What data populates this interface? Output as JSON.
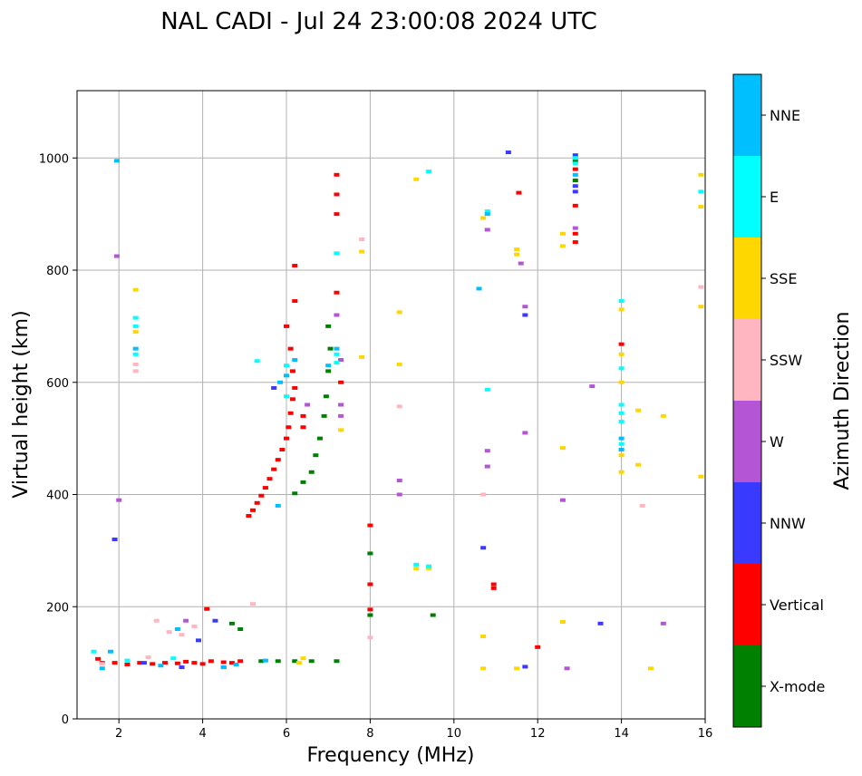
{
  "chart_data": {
    "type": "scatter",
    "title": "NAL CADI - Jul 24 23:00:08 2024 UTC",
    "xlabel": "Frequency (MHz)",
    "ylabel": "Virtual height (km)",
    "xlim": [
      1,
      16
    ],
    "ylim": [
      0,
      1120
    ],
    "xticks": [
      2,
      4,
      6,
      8,
      10,
      12,
      14,
      16
    ],
    "yticks": [
      0,
      200,
      400,
      600,
      800,
      1000
    ],
    "grid": true,
    "colorbar": {
      "label": "Azimuth Direction",
      "categories": [
        {
          "name": "X-mode",
          "color": "#008000"
        },
        {
          "name": "Vertical",
          "color": "#ff0000"
        },
        {
          "name": "NNW",
          "color": "#3a3aff"
        },
        {
          "name": "W",
          "color": "#b455d6"
        },
        {
          "name": "SSW",
          "color": "#ffb6c1"
        },
        {
          "name": "SSE",
          "color": "#ffd700"
        },
        {
          "name": "E",
          "color": "#00ffff"
        },
        {
          "name": "NNE",
          "color": "#00bfff"
        }
      ]
    },
    "series": [
      {
        "name": "Vertical",
        "points": [
          [
            1.9,
            100
          ],
          [
            2.2,
            97
          ],
          [
            2.5,
            100
          ],
          [
            2.8,
            98
          ],
          [
            3.1,
            100
          ],
          [
            3.4,
            99
          ],
          [
            3.6,
            102
          ],
          [
            3.8,
            100
          ],
          [
            4.0,
            98
          ],
          [
            4.2,
            103
          ],
          [
            4.5,
            101
          ],
          [
            4.7,
            100
          ],
          [
            4.9,
            103
          ],
          [
            1.6,
            100
          ],
          [
            1.5,
            107
          ],
          [
            5.1,
            362
          ],
          [
            5.2,
            372
          ],
          [
            5.3,
            385
          ],
          [
            5.4,
            398
          ],
          [
            5.5,
            412
          ],
          [
            5.6,
            428
          ],
          [
            5.7,
            445
          ],
          [
            5.8,
            462
          ],
          [
            5.9,
            480
          ],
          [
            6.0,
            500
          ],
          [
            6.05,
            520
          ],
          [
            6.1,
            545
          ],
          [
            6.15,
            570
          ],
          [
            6.2,
            590
          ],
          [
            6.15,
            620
          ],
          [
            6.1,
            660
          ],
          [
            6.0,
            700
          ],
          [
            6.2,
            745
          ],
          [
            6.2,
            808
          ],
          [
            6.4,
            540
          ],
          [
            6.4,
            520
          ],
          [
            7.2,
            760
          ],
          [
            7.2,
            900
          ],
          [
            7.2,
            935
          ],
          [
            7.2,
            970
          ],
          [
            7.3,
            600
          ],
          [
            8.0,
            345
          ],
          [
            8.0,
            240
          ],
          [
            8.0,
            195
          ],
          [
            10.95,
            240
          ],
          [
            10.95,
            233
          ],
          [
            11.55,
            938
          ],
          [
            12.0,
            128
          ],
          [
            12.9,
            850
          ],
          [
            12.9,
            865
          ],
          [
            12.9,
            915
          ],
          [
            12.9,
            980
          ],
          [
            14.0,
            668
          ],
          [
            4.1,
            196
          ]
        ]
      },
      {
        "name": "X-mode",
        "points": [
          [
            5.4,
            103
          ],
          [
            5.8,
            103
          ],
          [
            6.2,
            103
          ],
          [
            6.6,
            103
          ],
          [
            7.2,
            103
          ],
          [
            6.2,
            402
          ],
          [
            6.4,
            422
          ],
          [
            6.6,
            440
          ],
          [
            6.7,
            470
          ],
          [
            6.8,
            500
          ],
          [
            6.9,
            540
          ],
          [
            6.95,
            575
          ],
          [
            7.0,
            620
          ],
          [
            7.05,
            660
          ],
          [
            7.0,
            700
          ],
          [
            8.0,
            295
          ],
          [
            8.0,
            185
          ],
          [
            9.5,
            185
          ],
          [
            4.7,
            170
          ],
          [
            4.9,
            160
          ],
          [
            12.9,
            960
          ],
          [
            12.9,
            995
          ]
        ]
      },
      {
        "name": "NNW",
        "points": [
          [
            1.9,
            320
          ],
          [
            3.5,
            92
          ],
          [
            4.5,
            92
          ],
          [
            10.7,
            305
          ],
          [
            11.3,
            1010
          ],
          [
            11.7,
            720
          ],
          [
            11.7,
            93
          ],
          [
            12.9,
            940
          ],
          [
            12.9,
            1005
          ],
          [
            12.9,
            950
          ],
          [
            13.5,
            170
          ],
          [
            2.6,
            100
          ],
          [
            4.3,
            175
          ],
          [
            3.9,
            140
          ],
          [
            5.7,
            590
          ]
        ]
      },
      {
        "name": "W",
        "points": [
          [
            2.0,
            390
          ],
          [
            1.95,
            825
          ],
          [
            7.3,
            640
          ],
          [
            7.3,
            560
          ],
          [
            7.3,
            540
          ],
          [
            6.5,
            560
          ],
          [
            8.7,
            400
          ],
          [
            8.7,
            425
          ],
          [
            10.8,
            478
          ],
          [
            10.8,
            450
          ],
          [
            10.8,
            872
          ],
          [
            11.6,
            812
          ],
          [
            11.7,
            735
          ],
          [
            11.7,
            510
          ],
          [
            12.6,
            390
          ],
          [
            12.7,
            90
          ],
          [
            13.3,
            593
          ],
          [
            15.0,
            170
          ],
          [
            12.9,
            875
          ],
          [
            7.2,
            720
          ],
          [
            7.2,
            830
          ],
          [
            3.6,
            175
          ]
        ]
      },
      {
        "name": "SSW",
        "points": [
          [
            8.7,
            557
          ],
          [
            8.0,
            145
          ],
          [
            10.7,
            400
          ],
          [
            14.5,
            380
          ],
          [
            15.9,
            770
          ],
          [
            7.8,
            855
          ],
          [
            2.4,
            620
          ],
          [
            2.4,
            632
          ],
          [
            2.9,
            175
          ],
          [
            3.2,
            155
          ],
          [
            3.5,
            150
          ],
          [
            3.8,
            165
          ],
          [
            5.2,
            205
          ],
          [
            1.6,
            98
          ],
          [
            2.7,
            110
          ]
        ]
      },
      {
        "name": "SSE",
        "points": [
          [
            2.4,
            765
          ],
          [
            2.4,
            690
          ],
          [
            7.8,
            645
          ],
          [
            7.8,
            833
          ],
          [
            8.7,
            725
          ],
          [
            8.7,
            632
          ],
          [
            9.1,
            962
          ],
          [
            9.1,
            268
          ],
          [
            9.4,
            268
          ],
          [
            10.7,
            893
          ],
          [
            10.7,
            147
          ],
          [
            10.7,
            90
          ],
          [
            11.5,
            837
          ],
          [
            11.5,
            828
          ],
          [
            11.5,
            90
          ],
          [
            12.6,
            865
          ],
          [
            12.6,
            843
          ],
          [
            12.6,
            483
          ],
          [
            12.6,
            173
          ],
          [
            14.0,
            730
          ],
          [
            14.0,
            650
          ],
          [
            14.0,
            440
          ],
          [
            14.0,
            470
          ],
          [
            14.0,
            600
          ],
          [
            14.4,
            550
          ],
          [
            14.4,
            453
          ],
          [
            14.7,
            90
          ],
          [
            15.0,
            540
          ],
          [
            15.9,
            970
          ],
          [
            15.9,
            913
          ],
          [
            15.9,
            735
          ],
          [
            15.9,
            432
          ],
          [
            7.3,
            515
          ],
          [
            6.3,
            100
          ],
          [
            6.4,
            108
          ]
        ]
      },
      {
        "name": "E",
        "points": [
          [
            2.4,
            715
          ],
          [
            2.4,
            700
          ],
          [
            2.4,
            650
          ],
          [
            6.0,
            630
          ],
          [
            6.0,
            575
          ],
          [
            7.2,
            650
          ],
          [
            7.2,
            635
          ],
          [
            7.2,
            830
          ],
          [
            9.4,
            976
          ],
          [
            9.1,
            275
          ],
          [
            9.4,
            272
          ],
          [
            10.8,
            587
          ],
          [
            10.8,
            905
          ],
          [
            12.9,
            1000
          ],
          [
            12.9,
            990
          ],
          [
            14.0,
            745
          ],
          [
            14.0,
            625
          ],
          [
            14.0,
            545
          ],
          [
            14.0,
            530
          ],
          [
            14.0,
            490
          ],
          [
            14.0,
            560
          ],
          [
            15.9,
            940
          ],
          [
            5.3,
            638
          ],
          [
            1.4,
            120
          ],
          [
            2.2,
            104
          ],
          [
            3.3,
            108
          ]
        ]
      },
      {
        "name": "NNE",
        "points": [
          [
            1.95,
            995
          ],
          [
            1.8,
            120
          ],
          [
            1.6,
            90
          ],
          [
            2.4,
            660
          ],
          [
            5.8,
            380
          ],
          [
            5.85,
            600
          ],
          [
            6.0,
            612
          ],
          [
            6.2,
            640
          ],
          [
            7.2,
            660
          ],
          [
            7.0,
            630
          ],
          [
            10.6,
            767
          ],
          [
            10.8,
            900
          ],
          [
            12.9,
            970
          ],
          [
            14.0,
            480
          ],
          [
            14.0,
            500
          ],
          [
            4.5,
            92
          ],
          [
            3.0,
            95
          ],
          [
            4.8,
            97
          ],
          [
            3.4,
            160
          ],
          [
            5.5,
            104
          ]
        ]
      }
    ]
  }
}
